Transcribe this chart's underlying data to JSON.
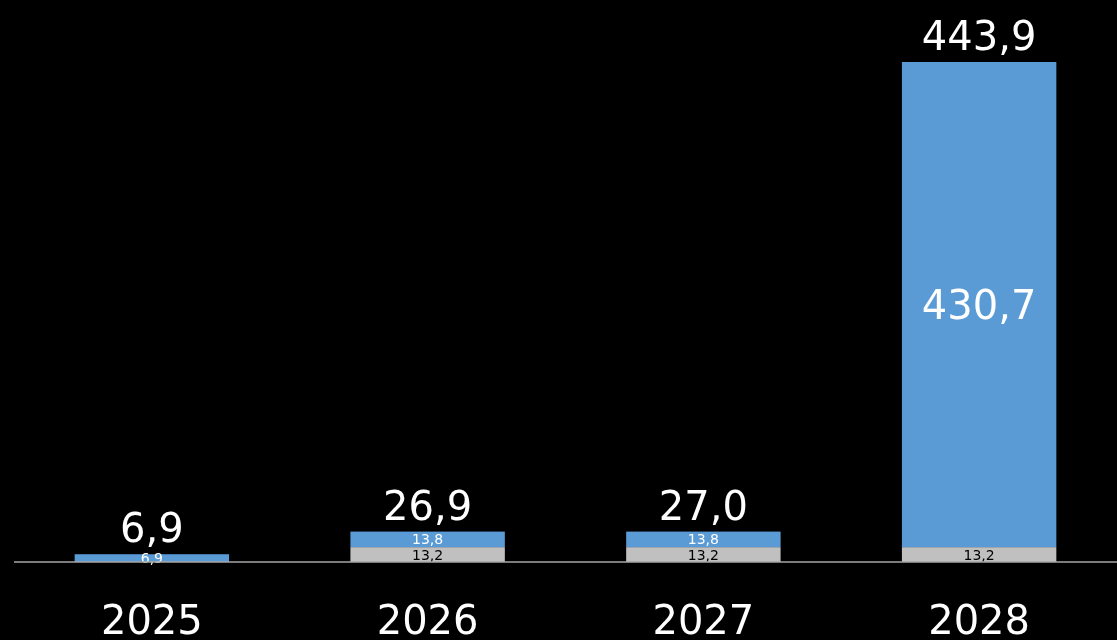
{
  "chart_data": {
    "type": "bar",
    "stacked": true,
    "categories": [
      "2025",
      "2026",
      "2027",
      "2028"
    ],
    "series": [
      {
        "color": "#c0c0c0",
        "values": [
          null,
          13.2,
          13.2,
          13.2
        ],
        "value_labels": [
          null,
          "13,2",
          "13,2",
          "13,2"
        ]
      },
      {
        "color": "#5b9bd5",
        "values": [
          6.9,
          13.8,
          13.8,
          430.7
        ],
        "value_labels": [
          "6,9",
          "13,8",
          "13,8",
          "430,7"
        ]
      }
    ],
    "totals": [
      "6,9",
      "26,9",
      "27,0",
      "443,9"
    ]
  }
}
